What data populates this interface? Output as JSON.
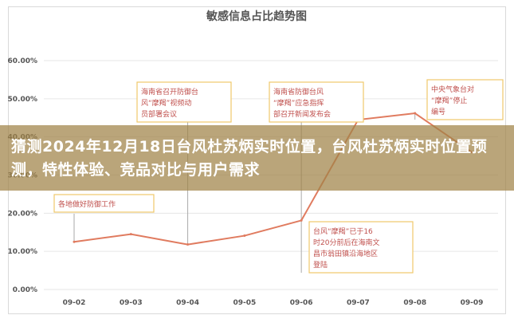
{
  "overlay": {
    "headline": "猜测2024年12月18日台风杜苏炳实时位置，台风杜苏炳实时位置预测，特性体验、竞品对比与用户需求"
  },
  "chart_data": {
    "type": "line",
    "title": "敏感信息占比趋势图",
    "xlabel": "",
    "ylabel": "",
    "categories": [
      "09-02",
      "09-03",
      "09-04",
      "09-05",
      "09-06",
      "09-07",
      "09-08",
      "09-09"
    ],
    "y_ticks": [
      "0.00%",
      "10.00%",
      "20.00%",
      "30.00%",
      "40.00%",
      "50.00%",
      "60.00%"
    ],
    "ylim": [
      0,
      0.65
    ],
    "grid": true,
    "series": [
      {
        "values": [
          0.125,
          0.145,
          0.118,
          0.141,
          0.181,
          0.445,
          0.462,
          0.36
        ]
      }
    ],
    "annotations": [
      {
        "category_index": 0,
        "text_lines": [
          "各地做好防御工作"
        ]
      },
      {
        "category_index": 2,
        "text_lines": [
          "海南省召开防御台",
          "风“摩羯”视频动",
          "员部署会议"
        ]
      },
      {
        "category_index": 4,
        "text_lines": [
          "海南省防御台风",
          "“摩羯”应急指挥",
          "部召开新闻发布会"
        ]
      },
      {
        "category_index": 4,
        "text_lines": [
          "台风“摩羯”已于16",
          "时20分前后在海南文",
          "昌市翁田镇沿海地区",
          "登陆"
        ]
      },
      {
        "category_index": 6,
        "text_lines": [
          "中央气象台对",
          "“摩羯”停止",
          "编号"
        ]
      }
    ],
    "colors": {
      "line": "#e07b5f",
      "marker_line": "#aaaaaa",
      "annotation_border": "#f0c96b",
      "annotation_text": "#c0504d",
      "grid": "#e6e6e6"
    }
  }
}
